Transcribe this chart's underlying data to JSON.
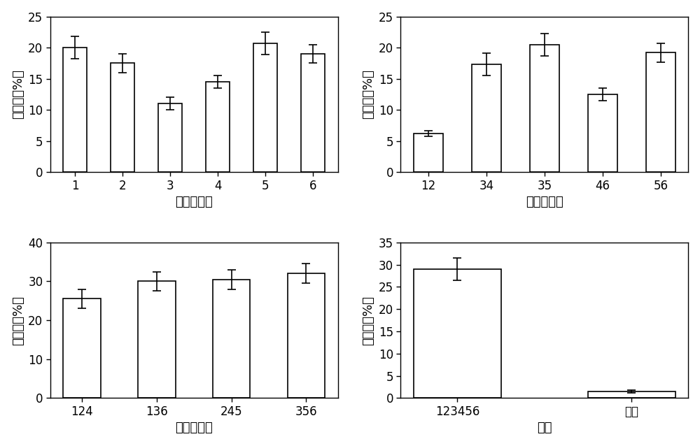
{
  "subplot1": {
    "categories": [
      "1",
      "2",
      "3",
      "4",
      "5",
      "6"
    ],
    "values": [
      20.0,
      17.5,
      11.0,
      14.5,
      20.7,
      19.0
    ],
    "errors": [
      1.8,
      1.5,
      1.0,
      1.0,
      1.8,
      1.5
    ],
    "xlabel": "单个菌处理",
    "ylabel": "降解率（%）",
    "ylim": [
      0,
      25
    ],
    "yticks": [
      0,
      5,
      10,
      15,
      20,
      25
    ]
  },
  "subplot2": {
    "categories": [
      "12",
      "34",
      "35",
      "46",
      "56"
    ],
    "values": [
      6.2,
      17.3,
      20.5,
      12.5,
      19.2
    ],
    "errors": [
      0.5,
      1.8,
      1.8,
      1.0,
      1.5
    ],
    "xlabel": "两个菌处理",
    "ylabel": "降解率（%）",
    "ylim": [
      0,
      25
    ],
    "yticks": [
      0,
      5,
      10,
      15,
      20,
      25
    ]
  },
  "subplot3": {
    "categories": [
      "124",
      "136",
      "245",
      "356"
    ],
    "values": [
      25.5,
      30.0,
      30.5,
      32.0
    ],
    "errors": [
      2.5,
      2.5,
      2.5,
      2.5
    ],
    "xlabel": "三个菌处理",
    "ylabel": "降解率（%）",
    "ylim": [
      0,
      40
    ],
    "yticks": [
      0,
      10,
      20,
      30,
      40
    ]
  },
  "subplot4": {
    "categories": [
      "123456",
      "空白"
    ],
    "values": [
      29.0,
      1.5
    ],
    "errors": [
      2.5,
      0.3
    ],
    "xlabel": "处理",
    "ylabel": "降解率（%）",
    "ylim": [
      0,
      35
    ],
    "yticks": [
      0,
      5,
      10,
      15,
      20,
      25,
      30,
      35
    ]
  },
  "bar_color": "#ffffff",
  "bar_edgecolor": "#000000",
  "background_color": "#ffffff",
  "capsize": 4,
  "bar_width": 0.5,
  "label_fontsize": 13,
  "tick_fontsize": 12
}
